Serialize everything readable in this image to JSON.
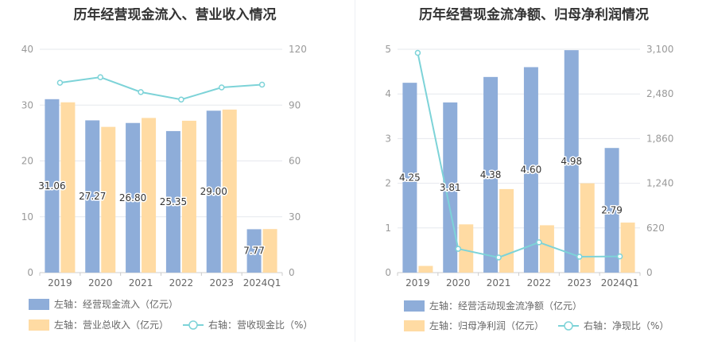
{
  "colors": {
    "bar_blue": "#8eadd9",
    "bar_orange": "#ffdba3",
    "line_cyan": "#7dd3d8",
    "grid": "#e6e8ee"
  },
  "chart_data": [
    {
      "id": "left",
      "type": "bar",
      "title": "历年经营现金流入、营业收入情况",
      "categories": [
        "2019",
        "2020",
        "2021",
        "2022",
        "2023",
        "2024Q1"
      ],
      "y_left": {
        "min": 0,
        "max": 40,
        "ticks": [
          "0",
          "10",
          "20",
          "30",
          "40"
        ]
      },
      "y_right": {
        "min": 0,
        "max": 120,
        "ticks": [
          "0",
          "30",
          "60",
          "90",
          "120"
        ]
      },
      "series": [
        {
          "name": "左轴：经营现金流入（亿元）",
          "kind": "bar",
          "axis": "left",
          "color": "#8eadd9",
          "values": [
            31.06,
            27.27,
            26.8,
            25.35,
            29.0,
            7.77
          ],
          "labels": [
            "31.06",
            "27.27",
            "26.80",
            "25.35",
            "29.00",
            "7.77"
          ]
        },
        {
          "name": "左轴：营业总收入（亿元）",
          "kind": "bar",
          "axis": "left",
          "color": "#ffdba3",
          "values": [
            30.5,
            26.1,
            27.7,
            27.2,
            29.2,
            7.8
          ]
        },
        {
          "name": "右轴：营收现金比（%）",
          "kind": "line",
          "axis": "right",
          "color": "#7dd3d8",
          "values": [
            102,
            105,
            97,
            93,
            99.5,
            101
          ]
        }
      ],
      "legend": "bottom"
    },
    {
      "id": "right",
      "type": "bar",
      "title": "历年经营现金流净额、归母净利润情况",
      "categories": [
        "2019",
        "2020",
        "2021",
        "2022",
        "2023",
        "2024Q1"
      ],
      "y_left": {
        "min": 0,
        "max": 5,
        "ticks": [
          "0",
          "1",
          "2",
          "3",
          "4",
          "5"
        ]
      },
      "y_right": {
        "min": 0,
        "max": 3100,
        "ticks": [
          "0",
          "620",
          "1,240",
          "1,860",
          "2,480",
          "3,100"
        ]
      },
      "series": [
        {
          "name": "左轴：经营活动现金流净额（亿元）",
          "kind": "bar",
          "axis": "left",
          "color": "#8eadd9",
          "values": [
            4.25,
            3.81,
            4.38,
            4.6,
            4.98,
            2.79
          ],
          "labels": [
            "4.25",
            "3.81",
            "4.38",
            "4.60",
            "4.98",
            "2.79"
          ]
        },
        {
          "name": "左轴：归母净利润（亿元）",
          "kind": "bar",
          "axis": "left",
          "color": "#ffdba3",
          "values": [
            0.15,
            1.08,
            1.87,
            1.06,
            2.0,
            1.12
          ]
        },
        {
          "name": "右轴：净现比（%）",
          "kind": "line",
          "axis": "right",
          "color": "#7dd3d8",
          "values": [
            3050,
            330,
            210,
            420,
            220,
            225
          ]
        }
      ],
      "legend": "bottom"
    }
  ]
}
